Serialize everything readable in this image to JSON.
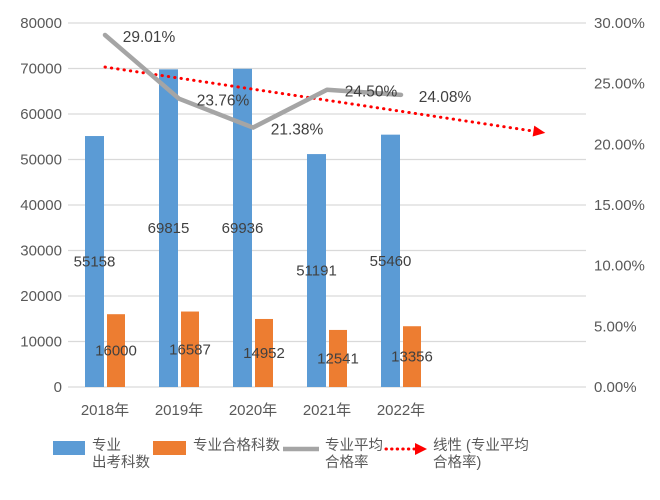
{
  "chart_data": {
    "type": "bar",
    "subtype": "combo-bar-line-trend",
    "title": "",
    "categories": [
      "2018年",
      "2019年",
      "2020年",
      "2021年",
      "2022年"
    ],
    "series": [
      {
        "name": "专业出考科数",
        "type": "bar",
        "axis": "left",
        "color": "#5B9BD5",
        "values": [
          55158,
          69815,
          69936,
          51191,
          55460
        ],
        "data_labels": [
          "55158",
          "69815",
          "69936",
          "51191",
          "55460"
        ]
      },
      {
        "name": "专业合格科数",
        "type": "bar",
        "axis": "left",
        "color": "#ED7D31",
        "values": [
          16000,
          16587,
          14952,
          12541,
          13356
        ],
        "data_labels": [
          "16000",
          "16587",
          "14952",
          "12541",
          "13356"
        ]
      },
      {
        "name": "专业平均合格率",
        "type": "line",
        "axis": "right",
        "color": "#A5A5A5",
        "values": [
          29.01,
          23.76,
          21.38,
          24.5,
          24.08
        ],
        "data_labels": [
          "29.01%",
          "23.76%",
          "21.38%",
          "24.50%",
          "24.08%"
        ]
      },
      {
        "name": "线性 (专业平均合格率)",
        "type": "trendline",
        "axis": "right",
        "color": "#FF0000",
        "of_series": "专业平均合格率",
        "forward_forecast_slots": 1.95
      }
    ],
    "left_axis": {
      "min": 0,
      "max": 80000,
      "step": 10000,
      "ticks": [
        "0",
        "10000",
        "20000",
        "30000",
        "40000",
        "50000",
        "60000",
        "70000",
        "80000"
      ]
    },
    "right_axis": {
      "min": 0,
      "max": 30,
      "step": 5,
      "ticks": [
        "0.00%",
        "5.00%",
        "10.00%",
        "15.00%",
        "20.00%",
        "25.00%",
        "30.00%"
      ]
    },
    "grid": true,
    "legend_position": "bottom"
  },
  "legend": {
    "items": [
      {
        "label": "专业\n出考科数"
      },
      {
        "label": "专业合格科数"
      },
      {
        "label": "专业平均\n合格率"
      },
      {
        "label": "线性 (专业平均\n合格率)"
      }
    ]
  },
  "colors": {
    "bar_blue": "#5B9BD5",
    "bar_orange": "#ED7D31",
    "line_gray": "#A5A5A5",
    "trend_red": "#FF0000",
    "gridline": "#D9D9D9",
    "axis_text": "#595959",
    "data_label_text": "#404040"
  }
}
